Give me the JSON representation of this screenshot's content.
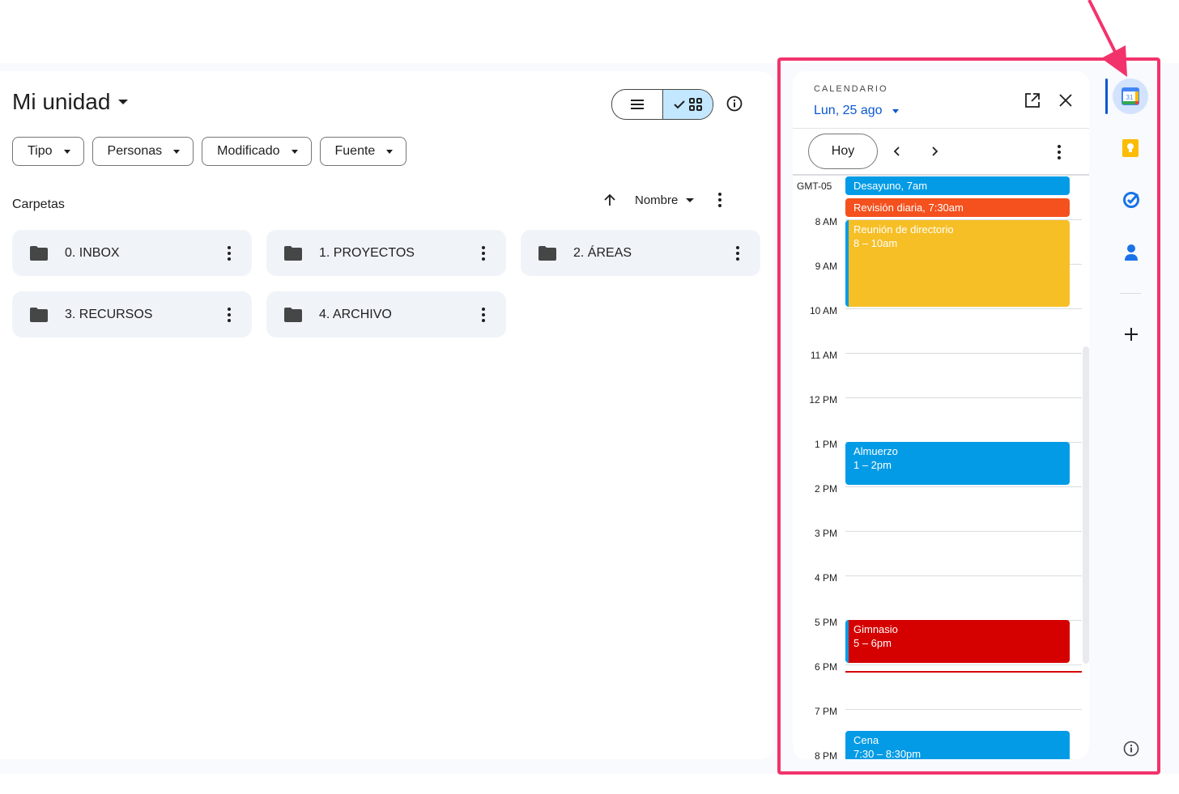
{
  "drive": {
    "title": "Mi unidad",
    "filters": [
      "Tipo",
      "Personas",
      "Modificado",
      "Fuente"
    ],
    "section_label": "Carpetas",
    "sort_label": "Nombre",
    "folders": [
      "0. INBOX",
      "1. PROYECTOS",
      "2. ÁREAS",
      "3. RECURSOS",
      "4. ARCHIVO"
    ]
  },
  "calendar": {
    "label": "CALENDARIO",
    "date": "Lun, 25 ago",
    "today_button": "Hoy",
    "timezone": "GMT-05",
    "hours": [
      "8 AM",
      "9 AM",
      "10 AM",
      "11 AM",
      "12 PM",
      "1 PM",
      "2 PM",
      "3 PM",
      "4 PM",
      "5 PM",
      "6 PM",
      "7 PM",
      "8 PM"
    ],
    "events": [
      {
        "title": "Desayuno, 7am",
        "time": "",
        "color": "#039be5"
      },
      {
        "title": "Revisión diaria, 7:30am",
        "time": "",
        "color": "#f4511e"
      },
      {
        "title": "Reunión de directorio",
        "time": "8 – 10am",
        "color": "#f6bf26"
      },
      {
        "title": "Almuerzo",
        "time": "1 – 2pm",
        "color": "#039be5"
      },
      {
        "title": "Gimnasio",
        "time": "5 – 6pm",
        "color": "#d50000"
      },
      {
        "title": "Cena",
        "time": "7:30 – 8:30pm",
        "color": "#039be5"
      }
    ]
  },
  "rail": {
    "calendar_day": "31",
    "icons": [
      "calendar-icon",
      "keep-icon",
      "tasks-icon",
      "contacts-icon",
      "plus-icon",
      "info-icon"
    ]
  },
  "colors": {
    "highlight_frame": "#f2336b",
    "accent_blue": "#0b57d0",
    "now_line": "#d50000"
  }
}
